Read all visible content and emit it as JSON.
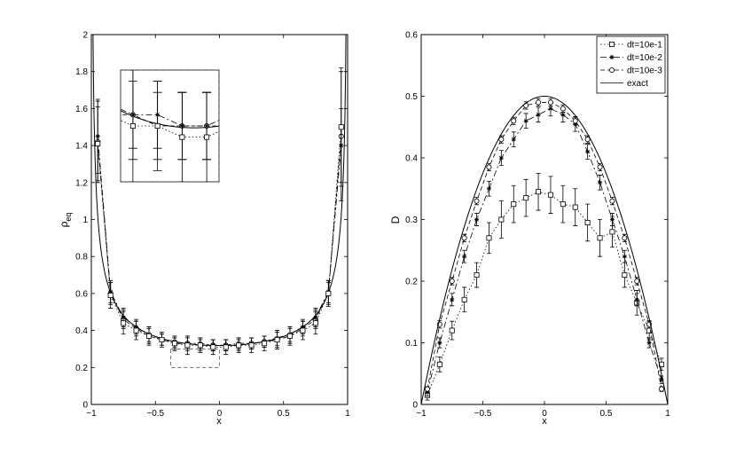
{
  "chart_data": [
    {
      "type": "line",
      "xlabel": "x",
      "ylabel": "ρ",
      "ylabel_sub": "eq",
      "xlim": [
        -1,
        1
      ],
      "ylim": [
        0,
        2
      ],
      "xticks": [
        -1,
        -0.5,
        0,
        0.5,
        1
      ],
      "xtick_labels": [
        "−1",
        "−0.5",
        "0",
        "0.5",
        "1"
      ],
      "yticks": [
        0,
        0.2,
        0.4,
        0.6,
        0.8,
        1,
        1.2,
        1.4,
        1.6,
        1.8,
        2
      ],
      "ytick_labels": [
        "0",
        "0.2",
        "0.4",
        "0.6",
        "0.8",
        "1",
        "1.2",
        "1.4",
        "1.6",
        "1.8",
        "2"
      ],
      "grid": false,
      "exact_formula": "1/(pi*sqrt(1-x^2))",
      "series": [
        {
          "marker": "circle",
          "dash": "5,3",
          "x": [
            -0.95,
            -0.85,
            -0.75,
            -0.65,
            -0.55,
            -0.45,
            -0.35,
            -0.25,
            -0.15,
            -0.05,
            0.05,
            0.15,
            0.25,
            0.35,
            0.45,
            0.55,
            0.65,
            0.75,
            0.85,
            0.95
          ],
          "y": [
            1.42,
            0.6,
            0.46,
            0.41,
            0.37,
            0.35,
            0.33,
            0.33,
            0.32,
            0.32,
            0.32,
            0.32,
            0.33,
            0.34,
            0.35,
            0.37,
            0.41,
            0.46,
            0.6,
            1.45
          ],
          "err": [
            0.22,
            0.06,
            0.05,
            0.04,
            0.04,
            0.03,
            0.03,
            0.04,
            0.03,
            0.03,
            0.03,
            0.03,
            0.03,
            0.03,
            0.04,
            0.04,
            0.04,
            0.05,
            0.06,
            0.35
          ]
        },
        {
          "marker": "star",
          "dash": "7,3,2,3",
          "x": [
            -0.95,
            -0.85,
            -0.75,
            -0.65,
            -0.55,
            -0.45,
            -0.35,
            -0.25,
            -0.15,
            -0.05,
            0.05,
            0.15,
            0.25,
            0.35,
            0.45,
            0.55,
            0.65,
            0.75,
            0.85,
            0.95
          ],
          "y": [
            1.45,
            0.61,
            0.47,
            0.42,
            0.38,
            0.35,
            0.34,
            0.33,
            0.33,
            0.32,
            0.32,
            0.33,
            0.33,
            0.34,
            0.36,
            0.38,
            0.42,
            0.47,
            0.61,
            1.4
          ],
          "err": [
            0.2,
            0.06,
            0.05,
            0.04,
            0.04,
            0.03,
            0.03,
            0.03,
            0.03,
            0.03,
            0.03,
            0.03,
            0.03,
            0.03,
            0.04,
            0.04,
            0.04,
            0.05,
            0.06,
            0.2
          ]
        },
        {
          "marker": "square",
          "dash": "1.5,2.5",
          "x": [
            -0.95,
            -0.85,
            -0.75,
            -0.65,
            -0.55,
            -0.45,
            -0.35,
            -0.25,
            -0.15,
            -0.05,
            0.05,
            0.15,
            0.25,
            0.35,
            0.45,
            0.55,
            0.65,
            0.75,
            0.85,
            0.95
          ],
          "y": [
            1.41,
            0.59,
            0.44,
            0.4,
            0.37,
            0.35,
            0.33,
            0.32,
            0.32,
            0.31,
            0.31,
            0.32,
            0.32,
            0.33,
            0.35,
            0.37,
            0.4,
            0.44,
            0.6,
            1.5
          ],
          "err": [
            0.2,
            0.07,
            0.06,
            0.05,
            0.05,
            0.04,
            0.04,
            0.05,
            0.04,
            0.04,
            0.04,
            0.04,
            0.04,
            0.04,
            0.05,
            0.05,
            0.05,
            0.06,
            0.07,
            0.32
          ]
        }
      ],
      "inset": {
        "data_xlim": [
          -0.3,
          0.1
        ],
        "data_ylim": [
          0.27,
          0.37
        ],
        "indicator_box": {
          "x": [
            -0.38,
            0
          ],
          "y": [
            0.2,
            0.3
          ]
        },
        "placement": "top-left"
      }
    },
    {
      "type": "line",
      "xlabel": "x",
      "ylabel": "D",
      "xlim": [
        -1,
        1
      ],
      "ylim": [
        0,
        0.6
      ],
      "xticks": [
        -1,
        -0.5,
        0,
        0.5,
        1
      ],
      "xtick_labels": [
        "−1",
        "−0.5",
        "0",
        "0.5",
        "1"
      ],
      "yticks": [
        0,
        0.1,
        0.2,
        0.3,
        0.4,
        0.5,
        0.6
      ],
      "ytick_labels": [
        "0",
        "0.1",
        "0.2",
        "0.3",
        "0.4",
        "0.5",
        "0.6"
      ],
      "grid": false,
      "legend_position": "top-right",
      "exact_formula": "0.5*(1-x^2)",
      "series": [
        {
          "name": "dt=10e-1",
          "marker": "square",
          "dash": "1.5,2.5",
          "x": [
            -0.95,
            -0.85,
            -0.75,
            -0.65,
            -0.55,
            -0.45,
            -0.35,
            -0.25,
            -0.15,
            -0.05,
            0.05,
            0.15,
            0.25,
            0.35,
            0.45,
            0.55,
            0.65,
            0.75,
            0.85,
            0.95
          ],
          "y": [
            0.015,
            0.065,
            0.12,
            0.17,
            0.21,
            0.27,
            0.3,
            0.325,
            0.335,
            0.345,
            0.34,
            0.325,
            0.32,
            0.295,
            0.27,
            0.28,
            0.21,
            0.165,
            0.12,
            0.065
          ],
          "err": [
            0.008,
            0.012,
            0.015,
            0.02,
            0.02,
            0.025,
            0.03,
            0.03,
            0.03,
            0.03,
            0.03,
            0.03,
            0.03,
            0.03,
            0.03,
            0.025,
            0.02,
            0.02,
            0.015,
            0.01
          ]
        },
        {
          "name": "dt=10e-2",
          "marker": "star",
          "dash": "7,3,2,3",
          "x": [
            -0.95,
            -0.85,
            -0.75,
            -0.65,
            -0.55,
            -0.45,
            -0.35,
            -0.25,
            -0.15,
            -0.05,
            0.05,
            0.15,
            0.25,
            0.35,
            0.45,
            0.55,
            0.65,
            0.75,
            0.85,
            0.95
          ],
          "y": [
            0.02,
            0.1,
            0.17,
            0.24,
            0.3,
            0.35,
            0.4,
            0.43,
            0.46,
            0.47,
            0.48,
            0.47,
            0.455,
            0.41,
            0.36,
            0.3,
            0.24,
            0.17,
            0.1,
            0.04
          ],
          "err": [
            0.006,
            0.008,
            0.01,
            0.01,
            0.01,
            0.012,
            0.012,
            0.012,
            0.012,
            0.012,
            0.012,
            0.012,
            0.012,
            0.012,
            0.012,
            0.01,
            0.01,
            0.01,
            0.008,
            0.006
          ]
        },
        {
          "name": "dt=10e-3",
          "marker": "circle",
          "dash": "5,3",
          "x": [
            -0.95,
            -0.85,
            -0.75,
            -0.65,
            -0.55,
            -0.45,
            -0.35,
            -0.25,
            -0.15,
            -0.05,
            0.05,
            0.15,
            0.25,
            0.35,
            0.45,
            0.55,
            0.65,
            0.75,
            0.85,
            0.95
          ],
          "y": [
            0.025,
            0.13,
            0.2,
            0.27,
            0.33,
            0.385,
            0.43,
            0.46,
            0.485,
            0.49,
            0.49,
            0.48,
            0.46,
            0.43,
            0.385,
            0.33,
            0.27,
            0.2,
            0.13,
            0.025
          ],
          "err": [
            0.004,
            0.006,
            0.006,
            0.006,
            0.006,
            0.006,
            0.006,
            0.006,
            0.006,
            0.006,
            0.006,
            0.006,
            0.006,
            0.006,
            0.006,
            0.006,
            0.006,
            0.006,
            0.006,
            0.004
          ]
        },
        {
          "name": "exact",
          "marker": "none",
          "dash": "none",
          "formula": "0.5*(1-x^2)"
        }
      ]
    }
  ]
}
